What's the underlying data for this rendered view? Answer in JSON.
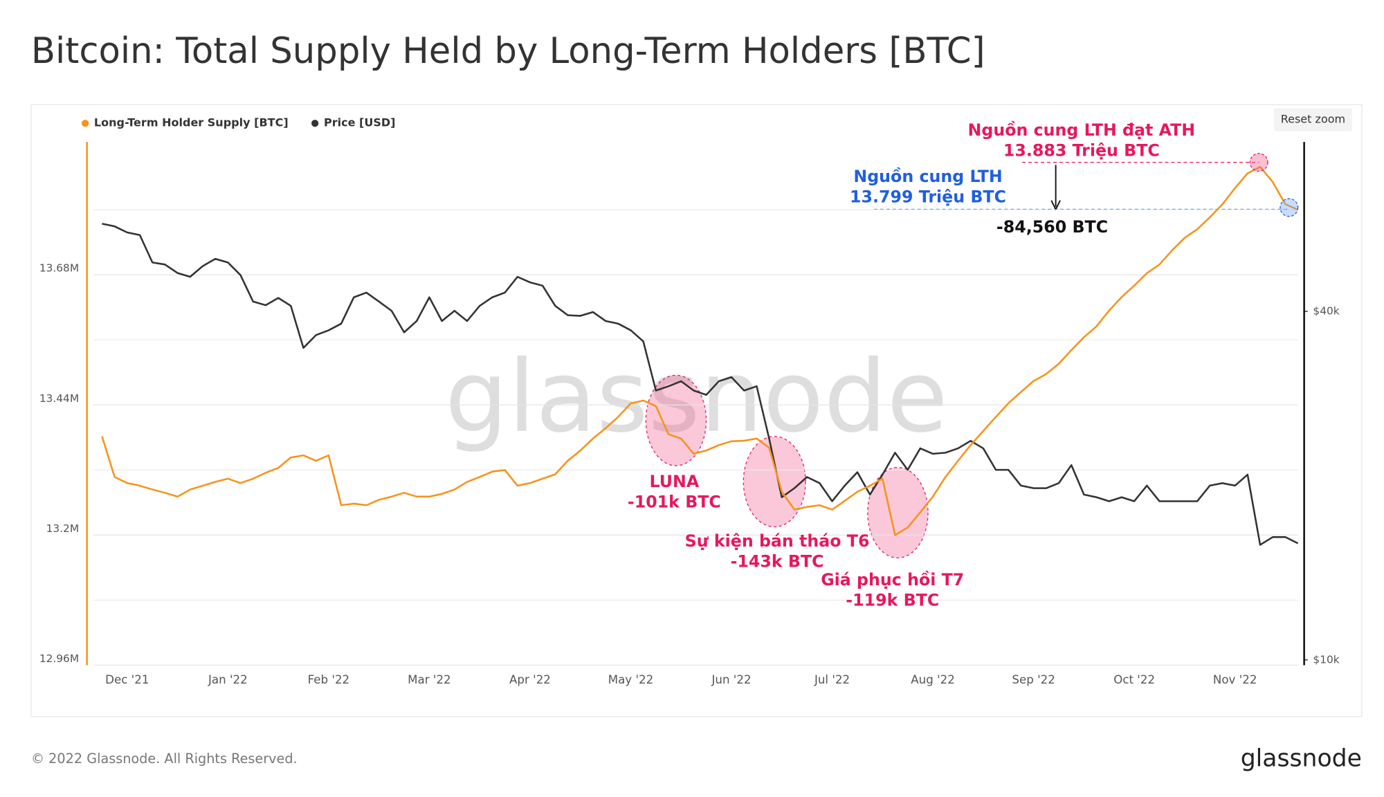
{
  "title": "Bitcoin: Total Supply Held by Long-Term Holders [BTC]",
  "footer": "© 2022 Glassnode. All Rights Reserved.",
  "logo": "glassnode",
  "watermark": "glassnode",
  "reset_button": "Reset zoom",
  "chart_data": {
    "type": "line",
    "categories": [
      null,
      null,
      "Dec '21",
      null,
      null,
      null,
      null,
      null,
      null,
      null,
      "Jan '22",
      null,
      null,
      null,
      null,
      null,
      null,
      null,
      "Feb '22",
      null,
      null,
      null,
      null,
      null,
      null,
      null,
      "Mar '22",
      null,
      null,
      null,
      null,
      null,
      null,
      null,
      "Apr '22",
      null,
      null,
      null,
      null,
      null,
      null,
      null,
      "May '22",
      null,
      null,
      null,
      null,
      null,
      null,
      null,
      "Jun '22",
      null,
      null,
      null,
      null,
      null,
      null,
      null,
      "Jul '22",
      null,
      null,
      null,
      null,
      null,
      null,
      null,
      "Aug '22",
      null,
      null,
      null,
      null,
      null,
      null,
      null,
      "Sep '22",
      null,
      null,
      null,
      null,
      null,
      null,
      null,
      "Oct '22",
      null,
      null,
      null,
      null,
      null,
      null,
      null,
      "Nov '22",
      null,
      null,
      null,
      null,
      null
    ],
    "series": [
      {
        "name": "Long-Term Holder Supply [BTC]",
        "color": "#f7931a",
        "values": [
          13382000,
          13307000,
          13296000,
          13291000,
          13284000,
          13278000,
          13271000,
          13284000,
          13291000,
          13298000,
          13304000,
          13296000,
          13304000,
          13315000,
          13324000,
          13343000,
          13347000,
          13337000,
          13347000,
          13255000,
          13258000,
          13255000,
          13265000,
          13271000,
          13278000,
          13271000,
          13271000,
          13276000,
          13284000,
          13298000,
          13307000,
          13317000,
          13320000,
          13291000,
          13296000,
          13304000,
          13312000,
          13337000,
          13356000,
          13378000,
          13397000,
          13418000,
          13443000,
          13448000,
          13438000,
          13386000,
          13378000,
          13350000,
          13356000,
          13366000,
          13373000,
          13374000,
          13378000,
          13361000,
          13280000,
          13247000,
          13252000,
          13255000,
          13247000,
          13263000,
          13280000,
          13291000,
          13304000,
          13200000,
          13214000,
          13242000,
          13271000,
          13307000,
          13337000,
          13366000,
          13392000,
          13418000,
          13443000,
          13464000,
          13484000,
          13497000,
          13516000,
          13541000,
          13565000,
          13585000,
          13614000,
          13639000,
          13660000,
          13683000,
          13699000,
          13725000,
          13748000,
          13764000,
          13786000,
          13810000,
          13840000,
          13867000,
          13879000,
          13851000,
          13810000,
          13800000
        ]
      },
      {
        "name": "Price [USD]",
        "color": "#333333",
        "axis": "y2",
        "values": [
          56700,
          56100,
          54750,
          54200,
          48600,
          48200,
          46600,
          45900,
          47900,
          49300,
          48600,
          46200,
          41600,
          41000,
          42200,
          40900,
          34600,
          36400,
          37100,
          38100,
          42300,
          43100,
          41600,
          40100,
          36800,
          38500,
          42300,
          38500,
          40100,
          38500,
          40900,
          42300,
          43100,
          45900,
          44900,
          44300,
          40900,
          39400,
          39300,
          39900,
          38500,
          38100,
          37100,
          35500,
          29200,
          29700,
          30300,
          29200,
          28700,
          30300,
          30800,
          29200,
          29700,
          24100,
          19100,
          19800,
          20700,
          20200,
          18800,
          20000,
          21100,
          19300,
          20900,
          22800,
          21300,
          23200,
          22700,
          22800,
          23200,
          23900,
          23200,
          21300,
          21300,
          20000,
          19800,
          19800,
          20200,
          21700,
          19300,
          19100,
          18800,
          19100,
          18800,
          20000,
          18800,
          18800,
          18800,
          18800,
          20000,
          20200,
          20000,
          20900,
          15800,
          16300,
          16300,
          15900
        ]
      }
    ],
    "ylim": [
      12960000,
      13925000
    ],
    "yticks": [
      {
        "value": 12960000,
        "label": "12.96M"
      },
      {
        "value": 13200000,
        "label": "13.2M"
      },
      {
        "value": 13440000,
        "label": "13.44M"
      },
      {
        "value": 13680000,
        "label": "13.68M"
      }
    ],
    "minor_grid": [
      13080000,
      13320000,
      13560000,
      13800000
    ],
    "y2lim": [
      9790,
      78500
    ],
    "y2log": true,
    "y2ticks": [
      {
        "value": 10000,
        "label": "$10k"
      },
      {
        "value": 40000,
        "label": "$40k"
      }
    ],
    "grid": true,
    "legend": "top-left",
    "annotations": [
      {
        "lines": [
          "Nguồn cung LTH đạt ATH",
          "13.883 Triệu BTC"
        ],
        "color": "#e8175d"
      },
      {
        "lines": [
          "Nguồn cung LTH",
          "13.799 Triệu BTC"
        ],
        "color": "#1f5fe0"
      },
      {
        "lines": [
          "-84,560 BTC"
        ],
        "color": "#111111"
      },
      {
        "lines": [
          "LUNA",
          "-101k BTC"
        ],
        "color": "#e8175d"
      },
      {
        "lines": [
          "Sự kiện bán tháo T6",
          "-143k BTC"
        ],
        "color": "#e8175d"
      },
      {
        "lines": [
          "Giá phục hồi T7",
          "-119k BTC"
        ],
        "color": "#e8175d"
      }
    ]
  }
}
